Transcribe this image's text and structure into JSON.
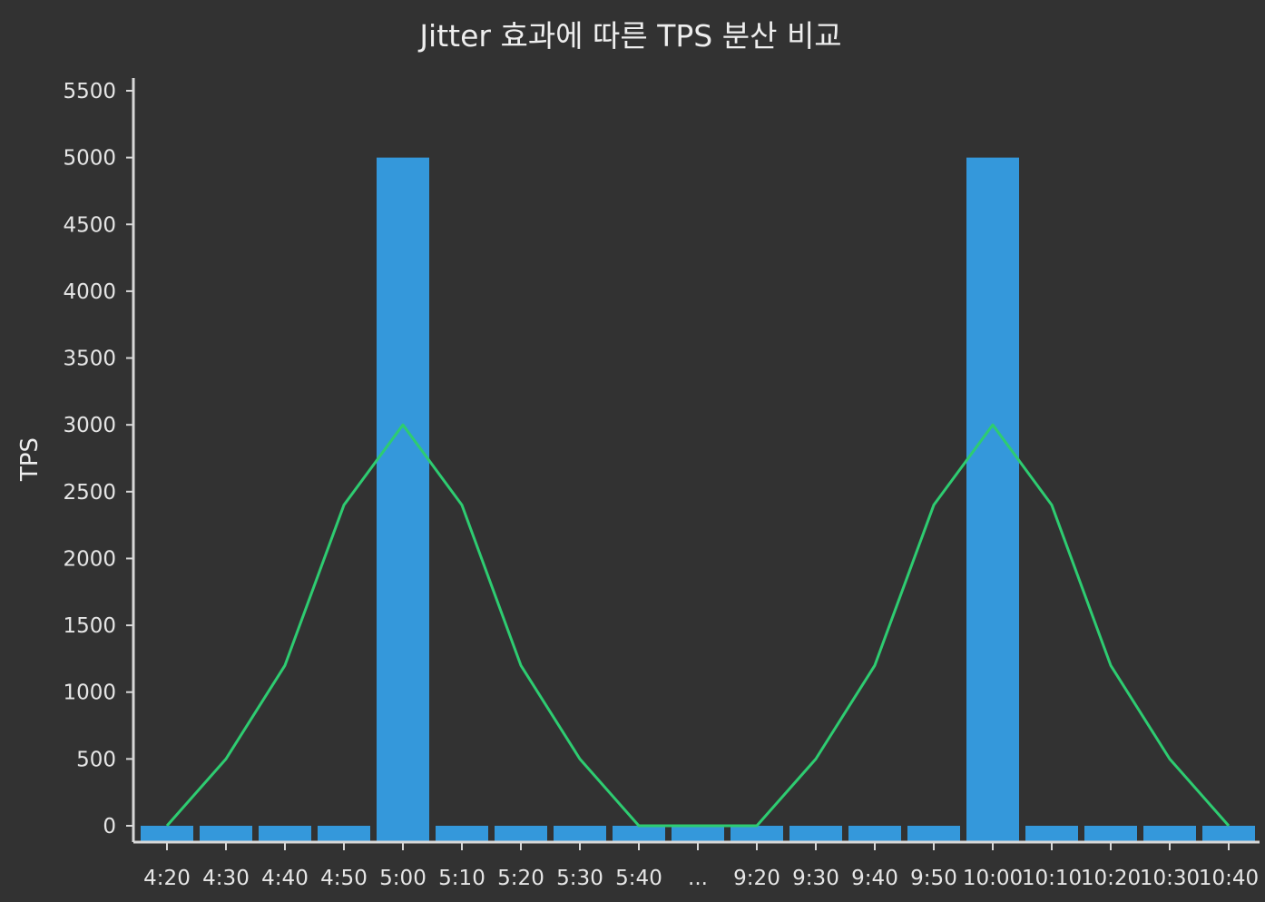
{
  "chart_data": {
    "type": "bar",
    "title": "Jitter 효과에 따른 TPS 분산 비교",
    "xlabel": "",
    "ylabel": "TPS",
    "ylim": [
      0,
      5500
    ],
    "yticks": [
      0,
      500,
      1000,
      1500,
      2000,
      2500,
      3000,
      3500,
      4000,
      4500,
      5000,
      5500
    ],
    "categories": [
      "4:20",
      "4:30",
      "4:40",
      "4:50",
      "5:00",
      "5:10",
      "5:20",
      "5:30",
      "5:40",
      "...",
      "9:20",
      "9:30",
      "9:40",
      "9:50",
      "10:00",
      "10:10",
      "10:20",
      "10:30",
      "10:40"
    ],
    "series": [
      {
        "type": "bar",
        "values": [
          0,
          0,
          0,
          0,
          5000,
          0,
          0,
          0,
          0,
          0,
          0,
          0,
          0,
          0,
          5000,
          0,
          0,
          0,
          0
        ],
        "color": "#3498db"
      },
      {
        "type": "line",
        "values": [
          0,
          500,
          1200,
          2400,
          3000,
          2400,
          1200,
          500,
          0,
          0,
          0,
          500,
          1200,
          2400,
          3000,
          2400,
          1200,
          500,
          0
        ],
        "color": "#2ecc71"
      }
    ],
    "grid": false,
    "legend": "none"
  }
}
